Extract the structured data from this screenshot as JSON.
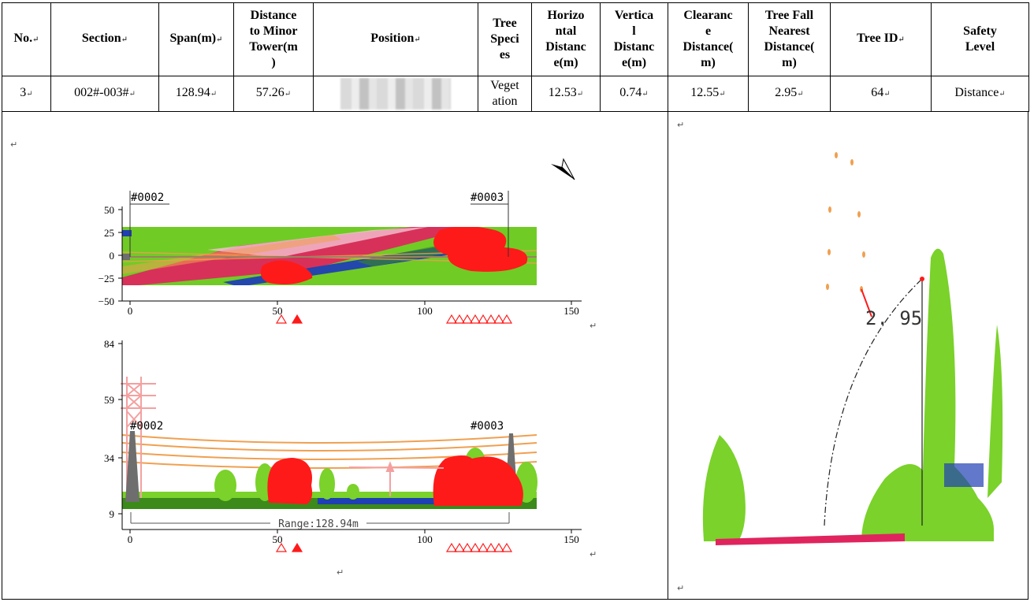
{
  "table": {
    "headers": [
      "No.",
      "Section",
      "Span(m)",
      "Distance to Minor Tower(m)",
      "Position",
      "Tree Species",
      "Horizontal Distance(m)",
      "Vertical Distance(m)",
      "Clearance Distance(m)",
      "Tree Fall Nearest Distance(m)",
      "Tree ID",
      "Safety Level"
    ],
    "header_lines": [
      [
        "No."
      ],
      [
        "Section"
      ],
      [
        "Span(m)"
      ],
      [
        "Distance",
        "to Minor",
        "Tower(m",
        ")"
      ],
      [
        "Position"
      ],
      [
        "Tree",
        "Speci",
        "es"
      ],
      [
        "Horizo",
        "ntal",
        "Distanc",
        "e(m)"
      ],
      [
        "Vertica",
        "l",
        "Distanc",
        "e(m)"
      ],
      [
        "Clearanc",
        "e",
        "Distance(",
        "m)"
      ],
      [
        "Tree Fall",
        "Nearest",
        "Distance(",
        "m)"
      ],
      [
        "Tree ID"
      ],
      [
        "Safety",
        "Level"
      ]
    ],
    "row": {
      "no": "3",
      "section": "002#-003#",
      "span": "128.94",
      "distance_to_minor_tower": "57.26",
      "position": "",
      "tree_species_lines": [
        "Veget",
        "ation"
      ],
      "horizontal_distance": "12.53",
      "vertical_distance": "0.74",
      "clearance_distance": "12.55",
      "tree_fall_nearest_distance": "2.95",
      "tree_id": "64",
      "safety_level": "Distance"
    }
  },
  "top_view": {
    "tower_labels": [
      "#0002",
      "#0003"
    ],
    "y_ticks": [
      "50",
      "25",
      "0",
      "−25",
      "−50"
    ],
    "x_ticks": [
      "0",
      "50",
      "100",
      "150"
    ]
  },
  "side_view": {
    "tower_labels": [
      "#0002",
      "#0003"
    ],
    "y_ticks": [
      "84",
      "59",
      "34",
      "9"
    ],
    "x_ticks": [
      "0",
      "50",
      "100",
      "150"
    ],
    "range_label": "Range:128.94m"
  },
  "detail_view": {
    "distance_label": "2. 95"
  },
  "colors": {
    "vegetation": "#7ad22a",
    "danger": "#ff1a1a",
    "ground": "#e0245e",
    "water": "#1f3fb4",
    "conductor": "#f0a050",
    "tower": "#6e6e6e",
    "pylon_pink": "#f4a0a0"
  }
}
